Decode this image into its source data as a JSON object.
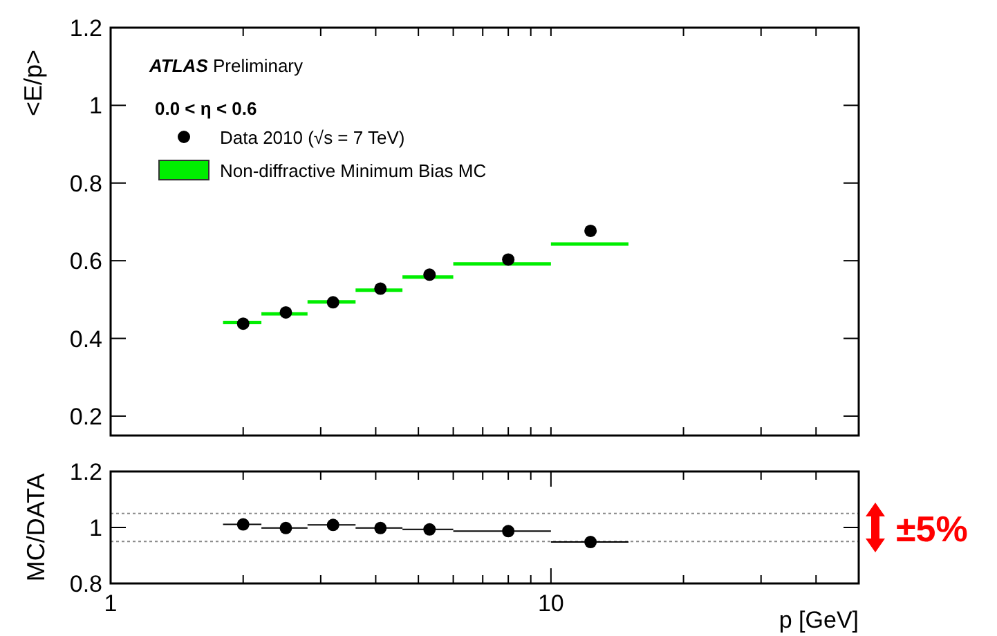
{
  "chart_data": [
    {
      "type": "scatter",
      "ylabel": "<E/p>",
      "annotations": [
        "ATLAS Preliminary",
        "0.0 < η < 0.6"
      ],
      "xlim": [
        1,
        50
      ],
      "xticks": [
        {
          "value": 2,
          "label": null
        },
        {
          "value": 3,
          "label": null
        },
        {
          "value": 4,
          "label": null
        },
        {
          "value": 5,
          "label": null
        },
        {
          "value": 6,
          "label": null
        },
        {
          "value": 7,
          "label": null
        },
        {
          "value": 8,
          "label": null
        },
        {
          "value": 9,
          "label": null
        },
        {
          "value": 10,
          "label": null
        },
        {
          "value": 20,
          "label": null
        },
        {
          "value": 30,
          "label": null
        },
        {
          "value": 40,
          "label": null
        }
      ],
      "ylim": [
        0.15,
        1.2
      ],
      "yticks": [
        0.2,
        0.4,
        0.6,
        0.8,
        1,
        1.2
      ],
      "log": "x",
      "tick_labels": "y",
      "legend": "top left",
      "grid": false,
      "series": [
        {
          "name": "Non-diffractive Minimum Bias MC",
          "type": "step",
          "color": "#00ee00",
          "marker": "none",
          "x": [
            1.8,
            2.2,
            2.8,
            3.6,
            4.6,
            6,
            10,
            15
          ],
          "values": [
            0.441,
            0.463,
            0.494,
            0.524,
            0.558,
            0.592,
            0.643,
            0.643
          ]
        },
        {
          "name": "Data 2010 (√s = 7 TeV)",
          "color": "#000000",
          "marker": "circle",
          "x": [
            2,
            2.5,
            3.2,
            4.1,
            5.3,
            8,
            12.3
          ],
          "values": [
            0.438,
            0.467,
            0.493,
            0.528,
            0.564,
            0.603,
            0.677
          ]
        }
      ]
    },
    {
      "type": "scatter",
      "xlabel": "p [GeV]",
      "ylabel": "MC/DATA",
      "annotations": [
        "±5%"
      ],
      "xlim": [
        1,
        50
      ],
      "xticks": [
        1,
        {
          "value": 2,
          "label": null
        },
        {
          "value": 3,
          "label": null
        },
        {
          "value": 4,
          "label": null
        },
        {
          "value": 5,
          "label": null
        },
        {
          "value": 6,
          "label": null
        },
        {
          "value": 7,
          "label": null
        },
        {
          "value": 8,
          "label": null
        },
        {
          "value": 9,
          "label": null
        },
        10,
        {
          "value": 20,
          "label": null
        },
        {
          "value": 30,
          "label": null
        },
        {
          "value": 40,
          "label": null
        }
      ],
      "ylim": [
        0.8,
        1.2
      ],
      "yticks": [
        0.8,
        1,
        1.2
      ],
      "log": "x",
      "grid": false,
      "ref_lines": [
        {
          "axis": "y",
          "value": 1.05,
          "line_style": "dotted",
          "color": "#888888"
        },
        {
          "axis": "y",
          "value": 0.95,
          "line_style": "dotted",
          "color": "#888888"
        }
      ],
      "series": [
        {
          "color": "#000000",
          "marker": "circle",
          "x": [
            2,
            2.5,
            3.2,
            4.1,
            5.3,
            8,
            12.3
          ],
          "values": [
            1.011,
            0.998,
            1.009,
            0.998,
            0.993,
            0.987,
            0.948
          ],
          "xerrors": [
            [
              1.8,
              2.2
            ],
            [
              2.2,
              2.8
            ],
            [
              2.8,
              3.6
            ],
            [
              3.6,
              4.6
            ],
            [
              4.6,
              6
            ],
            [
              6,
              10
            ],
            [
              10,
              15
            ]
          ]
        }
      ]
    }
  ]
}
